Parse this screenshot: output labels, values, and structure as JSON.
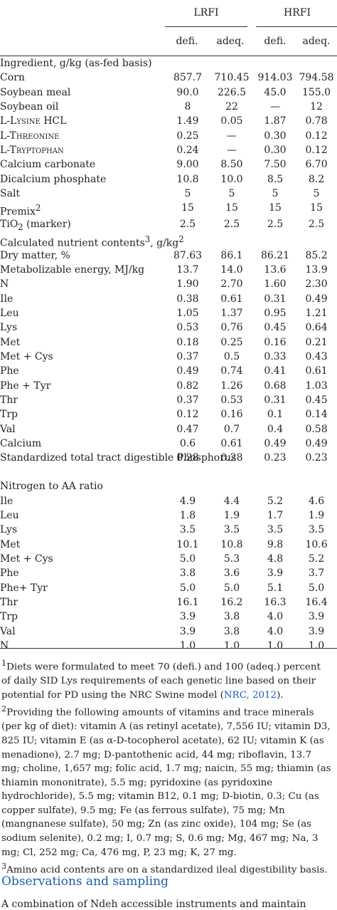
{
  "header": {
    "group1": "LRFI",
    "group2": "HRFI",
    "cols": [
      "defi.",
      "adeq.",
      "defi.",
      "adeq."
    ]
  },
  "sections": [
    {
      "title": "Ingredient, g/kg (as-fed basis)",
      "rows": [
        {
          "label": "Corn",
          "values": [
            "857.7",
            "710.45",
            "914.03",
            "794.58"
          ]
        },
        {
          "label": "Soybean meal",
          "values": [
            "90.0",
            "226.5",
            "45.0",
            "155.0"
          ]
        },
        {
          "label": "Soybean oil",
          "values": [
            "8",
            "22",
            "—",
            "12"
          ]
        },
        {
          "label": "L-Lysine HCL",
          "values": [
            "1.49",
            "0.05",
            "1.87",
            "0.78"
          ]
        },
        {
          "label": "L-Threonine",
          "values": [
            "0.25",
            "—",
            "0.30",
            "0.12"
          ]
        },
        {
          "label": "L-Tryptophan",
          "values": [
            "0.24",
            "—",
            "0.30",
            "0.12"
          ]
        },
        {
          "label": "Calcium carbonate",
          "values": [
            "9.00",
            "8.50",
            "7.50",
            "6.70"
          ]
        },
        {
          "label": "Dicalcium phosphate",
          "values": [
            "10.8",
            "10.0",
            "8.5",
            "8.2"
          ]
        },
        {
          "label": "Salt",
          "values": [
            "5",
            "5",
            "5",
            "5"
          ]
        },
        {
          "label": "Premix",
          "sup": "2",
          "values": [
            "15",
            "15",
            "15",
            "15"
          ]
        },
        {
          "label": "TiO",
          "sub": "2",
          "suffix": " (marker)",
          "values": [
            "2.5",
            "2.5",
            "2.5",
            "2.5"
          ]
        }
      ]
    },
    {
      "title": "Calculated nutrient contents",
      "title_sup": "3",
      "title_suffix": ", g/kg",
      "title_sup2": "2",
      "rows": [
        {
          "label": "Dry matter, %",
          "values": [
            "87.63",
            "86.1",
            "86.21",
            "85.2"
          ]
        },
        {
          "label": "Metabolizable energy, MJ/kg",
          "values": [
            "13.7",
            "14.0",
            "13.6",
            "13.9"
          ]
        },
        {
          "label": "N",
          "values": [
            "1.90",
            "2.70",
            "1.60",
            "2.30"
          ]
        },
        {
          "label": "Ile",
          "values": [
            "0.38",
            "0.61",
            "0.31",
            "0.49"
          ]
        },
        {
          "label": "Leu",
          "values": [
            "1.05",
            "1.37",
            "0.95",
            "1.21"
          ]
        },
        {
          "label": "Lys",
          "values": [
            "0.53",
            "0.76",
            "0.45",
            "0.64"
          ]
        },
        {
          "label": "Met",
          "values": [
            "0.18",
            "0.25",
            "0.16",
            "0.21"
          ]
        },
        {
          "label": "Met + Cys",
          "values": [
            "0.37",
            "0.5",
            "0.33",
            "0.43"
          ]
        },
        {
          "label": "Phe",
          "values": [
            "0.49",
            "0.74",
            "0.41",
            "0.61"
          ]
        },
        {
          "label": "Phe + Tyr",
          "values": [
            "0.82",
            "1.26",
            "0.68",
            "1.03"
          ]
        },
        {
          "label": "Thr",
          "values": [
            "0.37",
            "0.53",
            "0.31",
            "0.45"
          ]
        },
        {
          "label": "Trp",
          "values": [
            "0.12",
            "0.16",
            "0.1",
            "0.14"
          ]
        },
        {
          "label": "Val",
          "values": [
            "0.47",
            "0.7",
            "0.4",
            "0.58"
          ]
        },
        {
          "label": "Calcium",
          "values": [
            "0.6",
            "0.61",
            "0.49",
            "0.49"
          ]
        },
        {
          "label": "Standardized total tract digestible Phosphorus",
          "two_line": true,
          "values": [
            "0.28",
            "0.28",
            "0.23",
            "0.23"
          ]
        }
      ]
    },
    {
      "title": "Nitrogen to AA ratio",
      "rows": [
        {
          "label": "Ile",
          "values": [
            "4.9",
            "4.4",
            "5.2",
            "4.6"
          ]
        },
        {
          "label": "Leu",
          "values": [
            "1.8",
            "1.9",
            "1.7",
            "1.9"
          ]
        },
        {
          "label": "Lys",
          "values": [
            "3.5",
            "3.5",
            "3.5",
            "3.5"
          ]
        },
        {
          "label": "Met",
          "values": [
            "10.1",
            "10.8",
            "9.8",
            "10.6"
          ]
        },
        {
          "label": "Met + Cys",
          "values": [
            "5.0",
            "5.3",
            "4.8",
            "5.2"
          ]
        },
        {
          "label": "Phe",
          "values": [
            "3.8",
            "3.6",
            "3.9",
            "3.7"
          ]
        },
        {
          "label": "Phe+ Tyr",
          "values": [
            "5.0",
            "5.0",
            "5.1",
            "5.0"
          ]
        },
        {
          "label": "Thr",
          "values": [
            "16.1",
            "16.2",
            "16.3",
            "16.4"
          ]
        },
        {
          "label": "Trp",
          "values": [
            "3.9",
            "3.8",
            "4.0",
            "3.9"
          ]
        },
        {
          "label": "Val",
          "values": [
            "3.9",
            "3.8",
            "4.0",
            "3.9"
          ]
        },
        {
          "label": "N",
          "values": [
            "1.0",
            "1.0",
            "1.0",
            "1.0"
          ]
        }
      ]
    }
  ],
  "footnotes": {
    "fn1_sup": "1",
    "fn1_text": "Diets were formulated to meet 70 (defi.) and 100 (adeq.) percent of daily SID Lys requirements of each genetic line based on their potential for PD using the NRC Swine model (",
    "fn1_link": "NRC, 2012",
    "fn1_end": ").",
    "fn2_sup": "2",
    "fn2_text": "Providing the following amounts of vitamins and trace minerals (per kg of diet): vitamin A (as retinyl acetate), 7,556 IU; vitamin D3, 825 IU; vitamin E (as α-D-tocopherol acetate), 62 IU; vitamin K (as menadione), 2.7 mg; D-pantothenic acid, 44 mg; riboflavin, 13.7 mg; choline, 1,657 mg; folic acid, 1.7 mg; naicin, 55 mg; thiamin (as thiamin mononitrate), 5.5 mg; pyridoxine (as pyridoxine hydrochloride), 5.5 mg; vitamin B12, 0.1 mg; D-biotin, 0.3; Cu (as copper sulfate), 9.5 mg; Fe (as ferrous sulfate), 75 mg; Mn (mangnanese sulfate), 50 mg; Zn (as zinc oxide), 104 mg; Se (as sodium selenite), 0.2 mg; I, 0.7 mg; S, 0.6 mg; Mg, 467 mg; Na, 3 mg; Cl, 252 mg; Ca, 476 mg, P, 23 mg; K, 27 mg.",
    "fn3_sup": "3",
    "fn3_text": "Amino acid contents are on a standardized ileal digestibility basis."
  },
  "heading": "Observations and sampling",
  "cut_text": "A combination of Ndeh accessible instruments and maintain"
}
